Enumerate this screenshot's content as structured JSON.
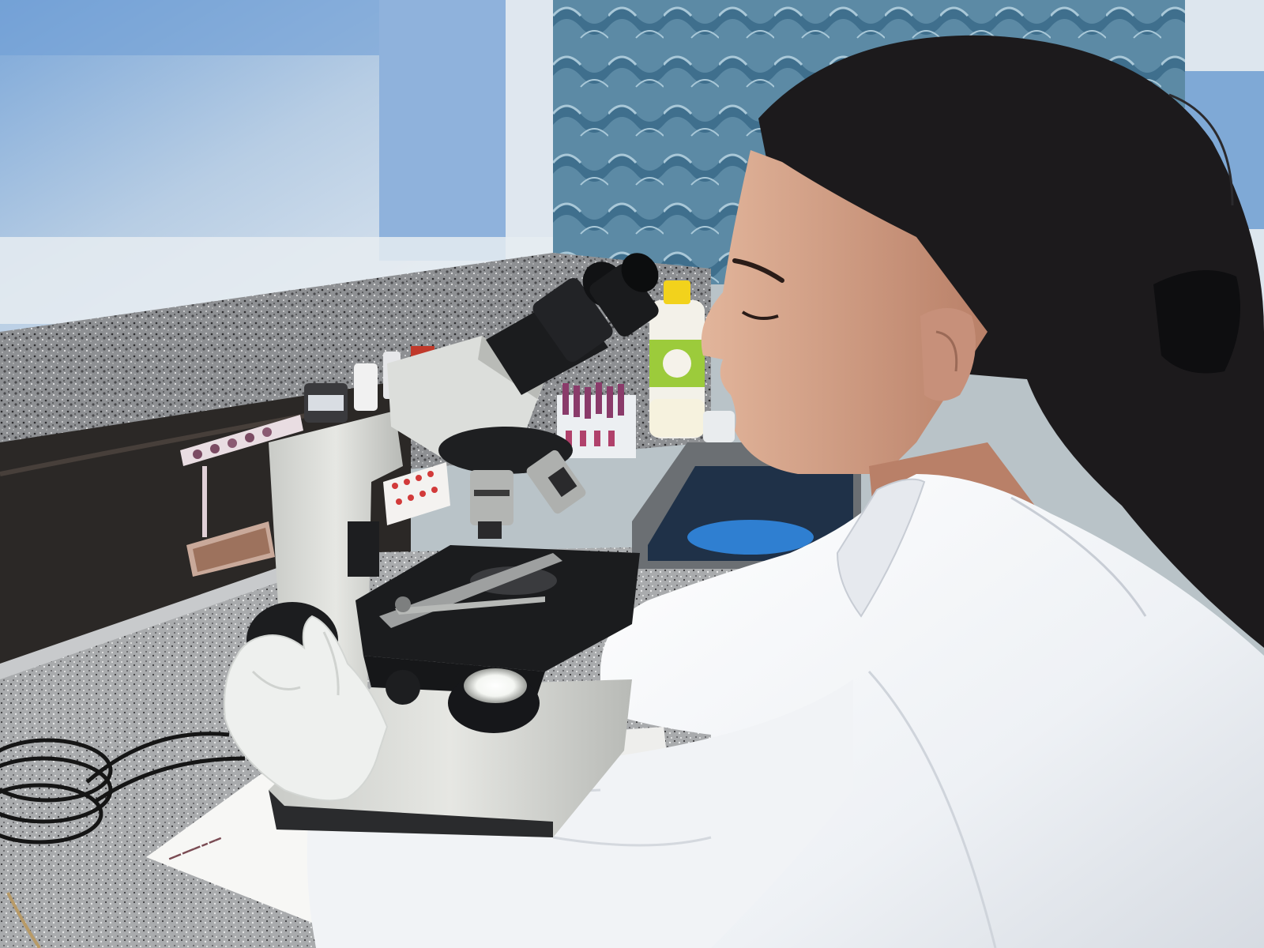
{
  "scene": {
    "subject": "laboratory-technician",
    "objects": [
      "microscope",
      "slide-rack",
      "sample-tubes",
      "wash-bottle",
      "sink",
      "power-cable",
      "request-slip"
    ]
  },
  "palette": {
    "wall_blue": "#7ea9da",
    "wall_white": "#e8eef4",
    "tile_teal": "#4f7f9b",
    "granite": "#8b8d90",
    "granite_dark": "#2d2a28",
    "lab_coat": "#f3f5f8",
    "glove": "#eef0ee",
    "hair": "#1c1a1c",
    "skin": "#c9977f",
    "microscope_body": "#d9dbd7",
    "microscope_black": "#1e1f21",
    "bucket_blue": "#2f7fd1",
    "lamp_light": "#ffffff"
  }
}
